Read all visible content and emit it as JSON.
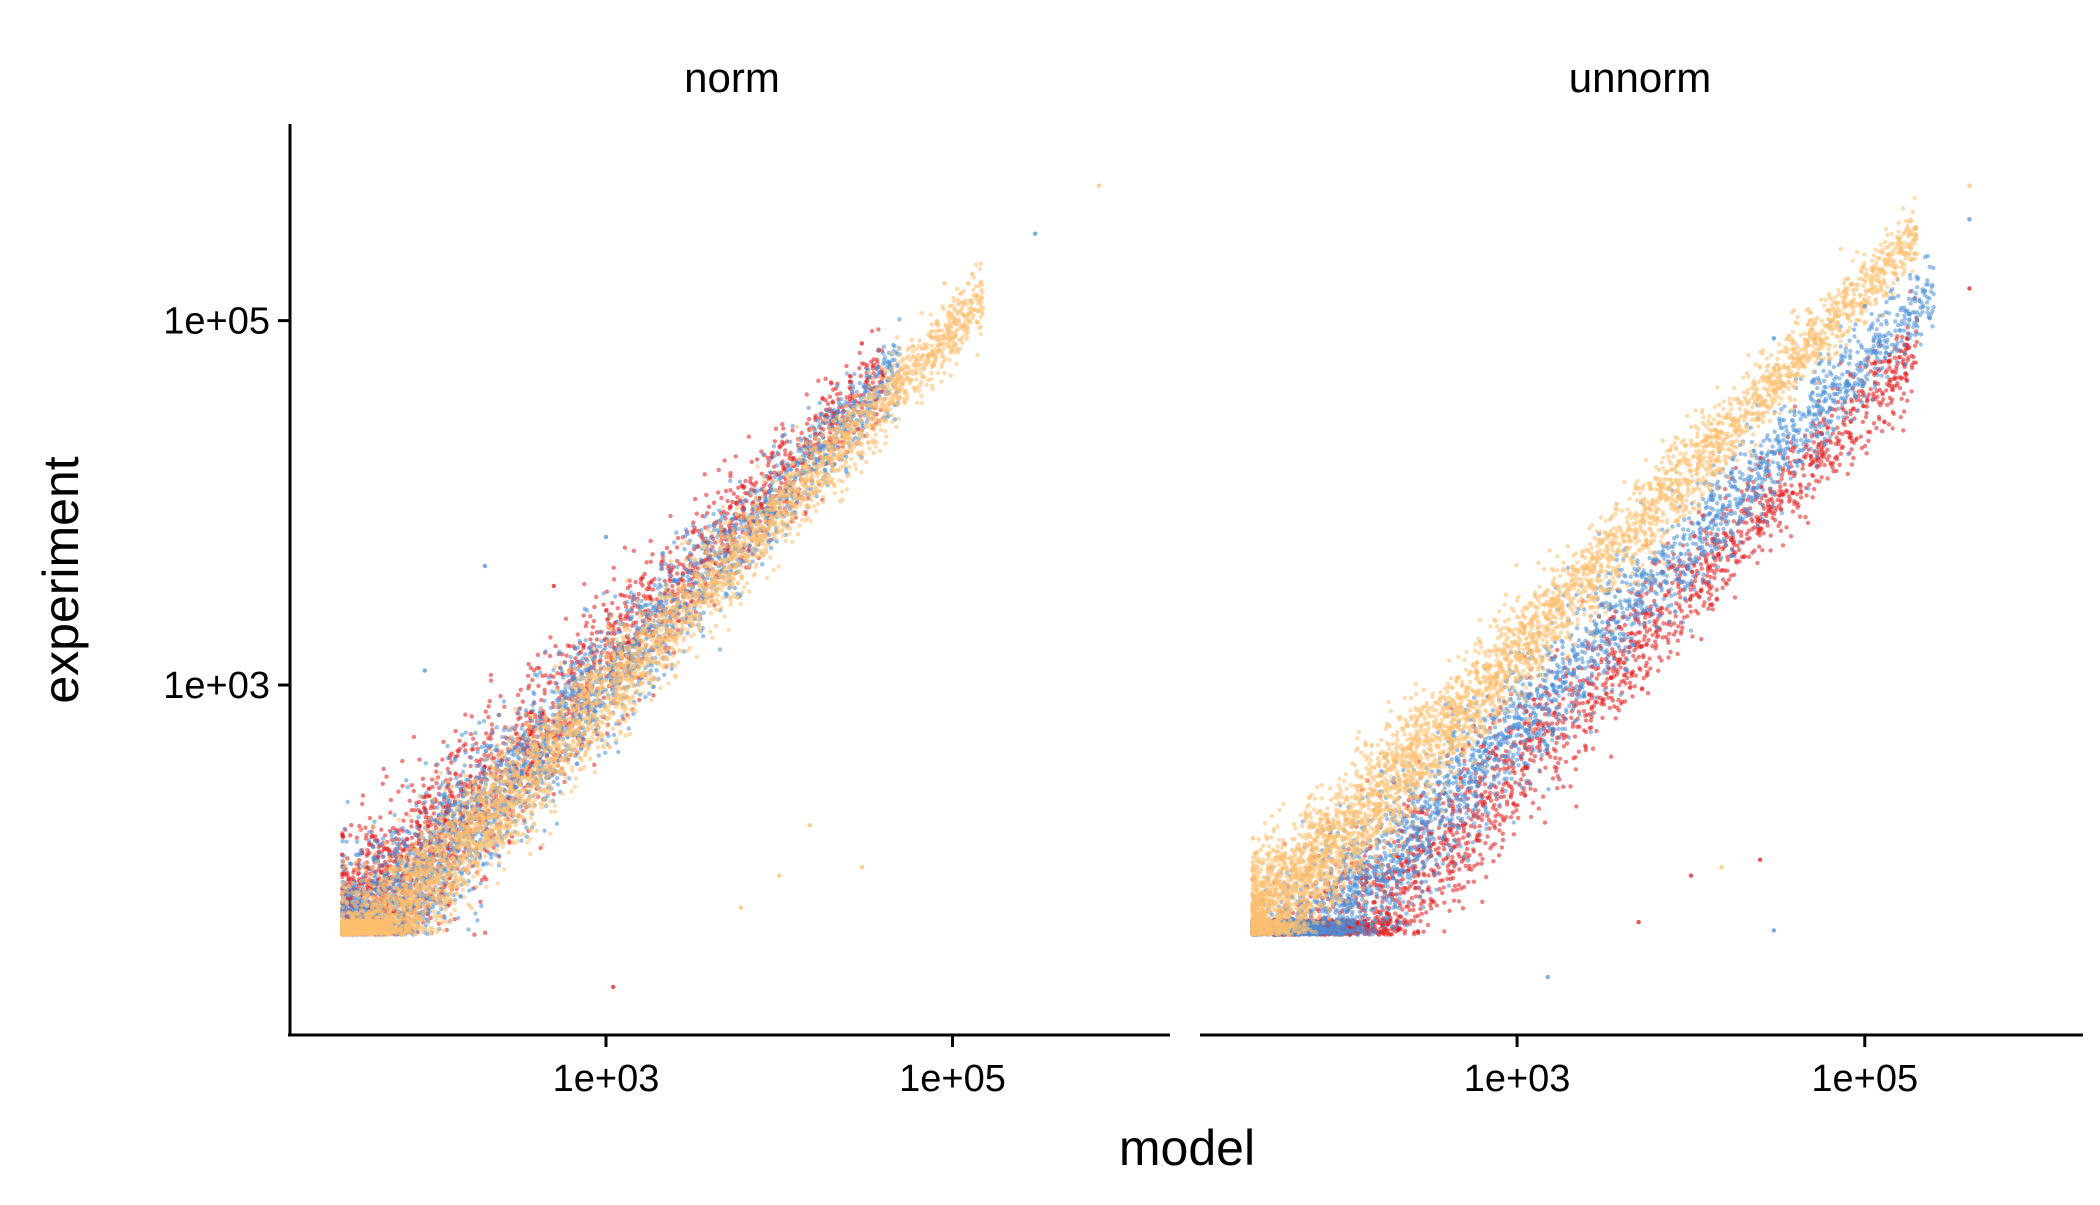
{
  "chart_data": {
    "type": "scatter",
    "xlabel": "model",
    "ylabel": "experiment",
    "x_scale": "log10",
    "y_scale": "log10",
    "xlim": [
      15,
      1800000
    ],
    "ylim": [
      12,
      1200000
    ],
    "x_ticks": [
      {
        "value": 1000,
        "label": "1e+03"
      },
      {
        "value": 100000,
        "label": "1e+05"
      }
    ],
    "y_ticks": [
      {
        "value": 1000,
        "label": "1e+03"
      },
      {
        "value": 100000,
        "label": "1e+05"
      }
    ],
    "grid": false,
    "legend": "none",
    "series": [
      {
        "key": "red",
        "color": "#e41a1c"
      },
      {
        "key": "blue",
        "color": "#4a90d9"
      },
      {
        "key": "orange",
        "color": "#fdbf6f"
      }
    ],
    "panels": [
      {
        "title": "norm",
        "clusters": [
          {
            "series": "red",
            "x_range": [
              30,
              40000
            ],
            "ratio": 1.35,
            "spread": 0.55,
            "count": 2600
          },
          {
            "series": "blue",
            "x_range": [
              30,
              50000
            ],
            "ratio": 1.1,
            "spread": 0.5,
            "count": 3000
          },
          {
            "series": "orange",
            "x_range": [
              30,
              150000
            ],
            "ratio": 0.9,
            "spread": 0.4,
            "count": 4600
          }
        ],
        "outliers": [
          {
            "x": 300000,
            "y": 300000,
            "series": "blue"
          },
          {
            "x": 700000,
            "y": 550000,
            "series": "orange"
          },
          {
            "x": 130000,
            "y": 180000,
            "series": "orange"
          },
          {
            "x": 90000,
            "y": 160000,
            "series": "orange"
          },
          {
            "x": 30000,
            "y": 75000,
            "series": "red"
          },
          {
            "x": 3000,
            "y": 6000,
            "series": "blue"
          },
          {
            "x": 1000,
            "y": 6500,
            "series": "blue"
          },
          {
            "x": 500,
            "y": 3500,
            "series": "red"
          },
          {
            "x": 200,
            "y": 4500,
            "series": "blue"
          },
          {
            "x": 90,
            "y": 1200,
            "series": "blue"
          },
          {
            "x": 30000,
            "y": 100,
            "series": "orange"
          },
          {
            "x": 15000,
            "y": 170,
            "series": "orange"
          },
          {
            "x": 10000,
            "y": 90,
            "series": "orange"
          },
          {
            "x": 6000,
            "y": 60,
            "series": "orange"
          },
          {
            "x": 1100,
            "y": 22,
            "series": "red"
          },
          {
            "x": 3000,
            "y": 6000,
            "series": "orange"
          }
        ]
      },
      {
        "title": "unnorm",
        "clusters": [
          {
            "series": "red",
            "x_range": [
              40,
              200000
            ],
            "ratio": 0.35,
            "spread": 0.55,
            "count": 2800
          },
          {
            "series": "blue",
            "x_range": [
              30,
              250000
            ],
            "ratio": 0.6,
            "spread": 0.5,
            "count": 3400
          },
          {
            "series": "orange",
            "x_range": [
              30,
              200000
            ],
            "ratio": 1.5,
            "spread": 0.4,
            "count": 4600
          }
        ],
        "outliers": [
          {
            "x": 400000,
            "y": 550000,
            "series": "orange"
          },
          {
            "x": 400000,
            "y": 360000,
            "series": "blue"
          },
          {
            "x": 400000,
            "y": 150000,
            "series": "red"
          },
          {
            "x": 80000,
            "y": 170000,
            "series": "orange"
          },
          {
            "x": 100000,
            "y": 120000,
            "series": "blue"
          },
          {
            "x": 30000,
            "y": 80000,
            "series": "blue"
          },
          {
            "x": 15000,
            "y": 100,
            "series": "orange"
          },
          {
            "x": 10000,
            "y": 90,
            "series": "red"
          },
          {
            "x": 25000,
            "y": 110,
            "series": "red"
          },
          {
            "x": 30000,
            "y": 45,
            "series": "blue"
          },
          {
            "x": 5000,
            "y": 50,
            "series": "red"
          },
          {
            "x": 1500,
            "y": 25,
            "series": "blue"
          }
        ]
      }
    ]
  }
}
